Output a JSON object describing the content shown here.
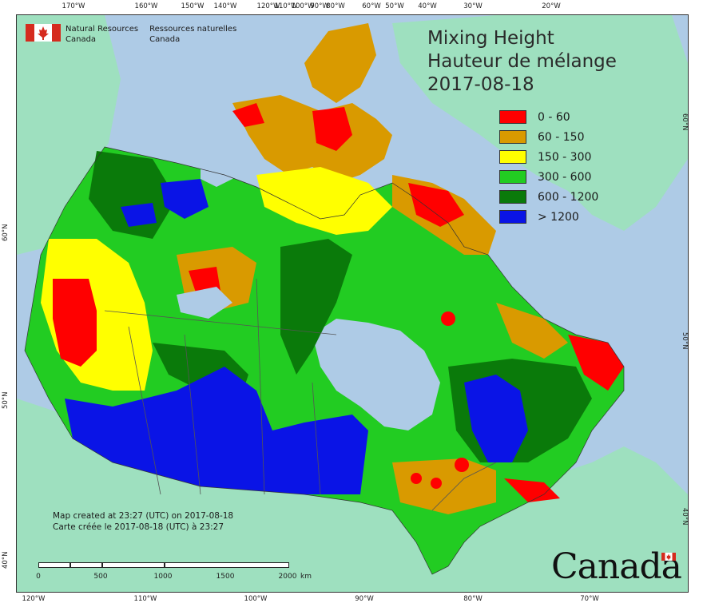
{
  "map": {
    "title_en": "Mixing Height",
    "title_fr": "Hauteur de mélange",
    "date": "2017-08-18",
    "legend": [
      {
        "label": "0 - 60",
        "color": "#ff0000"
      },
      {
        "label": "60 - 150",
        "color": "#d99a00"
      },
      {
        "label": "150 - 300",
        "color": "#ffff00"
      },
      {
        "label": "300 - 600",
        "color": "#22cc22"
      },
      {
        "label": "600 - 1200",
        "color": "#0a7a0a"
      },
      {
        "label": "> 1200",
        "color": "#0a14e6"
      }
    ],
    "agency_en_line1": "Natural Resources",
    "agency_en_line2": "Canada",
    "agency_fr_line1": "Ressources naturelles",
    "agency_fr_line2": "Canada",
    "created_en": "Map created at 23:27 (UTC) on 2017-08-18",
    "created_fr": "Carte créée le 2017-08-18 (UTC) à 23:27",
    "wordmark": "Canada",
    "scale_labels": [
      "0",
      "500",
      "1000",
      "1500",
      "2000",
      "km"
    ],
    "colors": {
      "ocean": "#aecbe6",
      "foreign_land": "#9ee0bf",
      "boundary": "#555555"
    },
    "graticule": {
      "top": [
        "170°W",
        "160°W",
        "150°W",
        "140°W",
        "120°W",
        "110°W",
        "100°W",
        "90°W",
        "80°W",
        "60°W",
        "50°W",
        "40°W",
        "30°W",
        "20°W"
      ],
      "bottom": [
        "120°W",
        "110°W",
        "100°W",
        "90°W",
        "80°W",
        "70°W"
      ],
      "left": [
        "60°N",
        "50°N",
        "40°N"
      ],
      "right": [
        "60°N",
        "50°N",
        "40°N"
      ]
    }
  }
}
